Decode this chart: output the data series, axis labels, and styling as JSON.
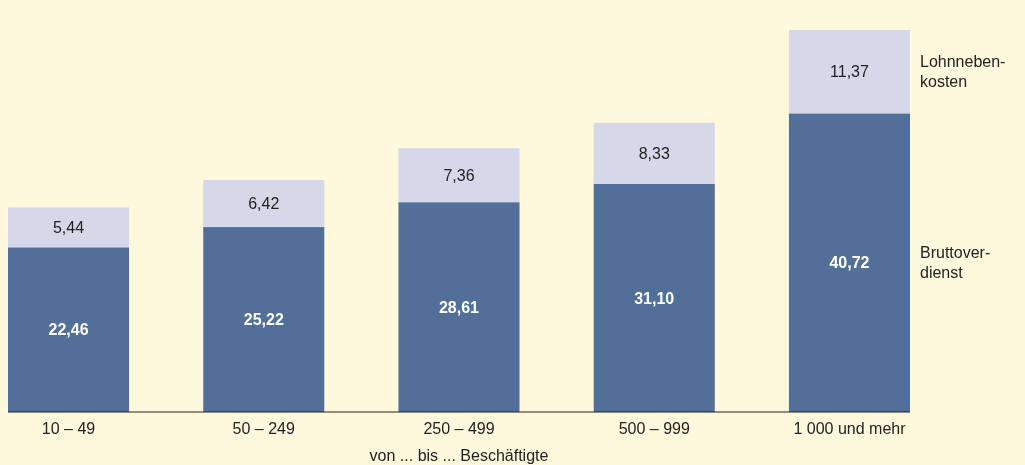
{
  "chart_data": {
    "type": "bar",
    "stacked": true,
    "xlabel": "von ... bis ... Beschäftigte",
    "categories": [
      "10 – 49",
      "50 – 249",
      "250 – 499",
      "500 – 999",
      "1 000 und mehr"
    ],
    "series": [
      {
        "name": "Bruttover-dienst",
        "color": "#526f9a",
        "values": [
          22.46,
          25.22,
          28.61,
          31.1,
          40.72
        ],
        "value_labels": [
          "22,46",
          "25,22",
          "28,61",
          "31,10",
          "40,72"
        ]
      },
      {
        "name": "Lohnneben-kosten",
        "color": "#d5d8e8",
        "values": [
          5.44,
          6.42,
          7.36,
          8.33,
          11.37
        ],
        "value_labels": [
          "5,44",
          "6,42",
          "7,36",
          "8,33",
          "11,37"
        ]
      }
    ]
  }
}
